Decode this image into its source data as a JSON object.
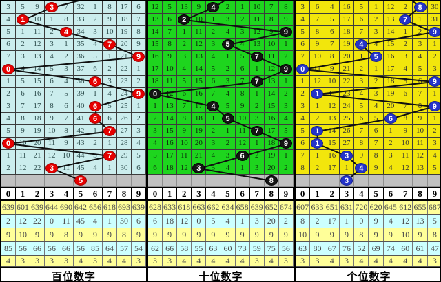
{
  "chart_data": {
    "type": "table",
    "description_visible_text_only": true,
    "column_headers": [
      "0",
      "1",
      "2",
      "3",
      "4",
      "5",
      "6",
      "7",
      "8",
      "9"
    ],
    "stats_row_colors": [
      "#FFFF99",
      "#CCFFFF",
      "#FFFF99",
      "#CCFFFF",
      "#FFFF99"
    ],
    "line_color": "#101010",
    "gray_row_color": "#C0C0C0",
    "panels": [
      {
        "id": "hundreds",
        "title": "百位数字",
        "bg": "#CBEDED",
        "text_color": "#2F4F4F",
        "ball_color": "#E60000",
        "ball_border": "#9d0000",
        "incoming_from_col": 6.3,
        "drawn_sequence": [
          3,
          1,
          4,
          7,
          9,
          0,
          6,
          9,
          6,
          6,
          7,
          0,
          7,
          3
        ],
        "rows": [
          {
            "cells": [
              "3",
              "5",
              "9",
              "3",
              "7",
              "32",
              "1",
              "8",
              "17",
              "6"
            ],
            "ball": 3
          },
          {
            "cells": [
              "4",
              "1",
              "10",
              "1",
              "8",
              "33",
              "2",
              "9",
              "18",
              "7"
            ],
            "ball": 1
          },
          {
            "cells": [
              "5",
              "1",
              "11",
              "2",
              "4",
              "34",
              "3",
              "10",
              "19",
              "8"
            ],
            "ball": 4
          },
          {
            "cells": [
              "6",
              "2",
              "12",
              "3",
              "1",
              "35",
              "4",
              "7",
              "20",
              "9"
            ],
            "ball": 7
          },
          {
            "cells": [
              "7",
              "3",
              "13",
              "4",
              "2",
              "36",
              "5",
              "1",
              "21",
              "9"
            ],
            "ball": 9
          },
          {
            "cells": [
              "0",
              "4",
              "14",
              "5",
              "3",
              "37",
              "6",
              "2",
              "22",
              "1"
            ],
            "ball": 0
          },
          {
            "cells": [
              "1",
              "5",
              "15",
              "6",
              "4",
              "38",
              "6",
              "3",
              "23",
              "2"
            ],
            "ball": 6
          },
          {
            "cells": [
              "2",
              "6",
              "16",
              "7",
              "5",
              "39",
              "1",
              "4",
              "24",
              "9"
            ],
            "ball": 9
          },
          {
            "cells": [
              "3",
              "7",
              "17",
              "8",
              "6",
              "40",
              "6",
              "5",
              "25",
              "1"
            ],
            "ball": 6
          },
          {
            "cells": [
              "4",
              "8",
              "18",
              "9",
              "7",
              "41",
              "6",
              "6",
              "26",
              "2"
            ],
            "ball": 6
          },
          {
            "cells": [
              "5",
              "9",
              "19",
              "10",
              "8",
              "42",
              "1",
              "7",
              "27",
              "3"
            ],
            "ball": 7
          },
          {
            "cells": [
              "0",
              "10",
              "20",
              "11",
              "9",
              "43",
              "2",
              "1",
              "28",
              "4"
            ],
            "ball": 0
          },
          {
            "cells": [
              "1",
              "11",
              "21",
              "12",
              "10",
              "44",
              "3",
              "7",
              "29",
              "5"
            ],
            "ball": 7
          },
          {
            "cells": [
              "2",
              "12",
              "22",
              "3",
              "11",
              "45",
              "4",
              "1",
              "30",
              "6"
            ],
            "ball": 3
          }
        ],
        "gray_ball_col": 5,
        "gray_ball_value": "5",
        "stats": [
          [
            "639",
            "601",
            "639",
            "644",
            "690",
            "642",
            "656",
            "618",
            "693",
            "639"
          ],
          [
            "2",
            "12",
            "22",
            "0",
            "11",
            "45",
            "4",
            "1",
            "30",
            "6"
          ],
          [
            "9",
            "10",
            "9",
            "9",
            "8",
            "9",
            "9",
            "9",
            "8",
            "9"
          ],
          [
            "85",
            "56",
            "66",
            "56",
            "66",
            "56",
            "85",
            "64",
            "57",
            "54"
          ],
          [
            "4",
            "3",
            "3",
            "3",
            "3",
            "4",
            "3",
            "4",
            "4",
            "3"
          ]
        ]
      },
      {
        "id": "tens",
        "title": "十位数字",
        "bg": "#1ED51E",
        "text_color": "#0b2b0b",
        "ball_color": "#141414",
        "ball_border": "#000000",
        "incoming_from_col": 5.3,
        "drawn_sequence": [
          4,
          2,
          9,
          5,
          7,
          9,
          7,
          0,
          4,
          5,
          7,
          9,
          6,
          3
        ],
        "rows": [
          {
            "cells": [
              "12",
              "5",
              "13",
              "9",
              "4",
              "2",
              "1",
              "10",
              "7",
              "8"
            ],
            "ball": 4
          },
          {
            "cells": [
              "13",
              "6",
              "2",
              "10",
              "1",
              "3",
              "2",
              "11",
              "8",
              "9"
            ],
            "ball": 2
          },
          {
            "cells": [
              "14",
              "7",
              "1",
              "11",
              "2",
              "4",
              "3",
              "12",
              "9",
              "9"
            ],
            "ball": 9
          },
          {
            "cells": [
              "15",
              "8",
              "2",
              "12",
              "3",
              "5",
              "4",
              "13",
              "10",
              "1"
            ],
            "ball": 5
          },
          {
            "cells": [
              "16",
              "9",
              "3",
              "13",
              "4",
              "1",
              "5",
              "7",
              "11",
              "2"
            ],
            "ball": 7
          },
          {
            "cells": [
              "17",
              "10",
              "4",
              "14",
              "5",
              "2",
              "6",
              "1",
              "12",
              "9"
            ],
            "ball": 9
          },
          {
            "cells": [
              "18",
              "11",
              "5",
              "15",
              "6",
              "3",
              "7",
              "7",
              "13",
              "1"
            ],
            "ball": 7
          },
          {
            "cells": [
              "0",
              "12",
              "6",
              "16",
              "7",
              "4",
              "8",
              "1",
              "14",
              "2"
            ],
            "ball": 0
          },
          {
            "cells": [
              "1",
              "13",
              "7",
              "17",
              "4",
              "5",
              "9",
              "2",
              "15",
              "3"
            ],
            "ball": 4
          },
          {
            "cells": [
              "2",
              "14",
              "8",
              "18",
              "1",
              "5",
              "10",
              "3",
              "16",
              "4"
            ],
            "ball": 5
          },
          {
            "cells": [
              "3",
              "15",
              "9",
              "19",
              "2",
              "1",
              "11",
              "7",
              "17",
              "5"
            ],
            "ball": 7
          },
          {
            "cells": [
              "4",
              "16",
              "10",
              "20",
              "3",
              "2",
              "12",
              "1",
              "18",
              "9"
            ],
            "ball": 9
          },
          {
            "cells": [
              "5",
              "17",
              "11",
              "21",
              "4",
              "3",
              "6",
              "2",
              "19",
              "1"
            ],
            "ball": 6
          },
          {
            "cells": [
              "6",
              "18",
              "12",
              "3",
              "5",
              "4",
              "1",
              "3",
              "20",
              "2"
            ],
            "ball": 3
          }
        ],
        "gray_ball_col": 8,
        "gray_ball_value": "8",
        "stats": [
          [
            "628",
            "633",
            "618",
            "663",
            "662",
            "634",
            "658",
            "639",
            "652",
            "674"
          ],
          [
            "6",
            "18",
            "12",
            "0",
            "5",
            "4",
            "1",
            "3",
            "20",
            "2"
          ],
          [
            "9",
            "9",
            "9",
            "9",
            "9",
            "9",
            "9",
            "9",
            "9",
            "9"
          ],
          [
            "62",
            "66",
            "58",
            "55",
            "63",
            "60",
            "73",
            "59",
            "75",
            "56"
          ],
          [
            "3",
            "3",
            "4",
            "4",
            "4",
            "4",
            "4",
            "3",
            "4",
            "3"
          ]
        ]
      },
      {
        "id": "units",
        "title": "个位数字",
        "bg": "#F2E60C",
        "text_color": "#333333",
        "ball_color": "#2433C9",
        "ball_border": "#15208f",
        "incoming_from_col": 7.2,
        "drawn_sequence": [
          8,
          7,
          9,
          4,
          5,
          0,
          9,
          1,
          9,
          6,
          1,
          1,
          3,
          4
        ],
        "rows": [
          {
            "cells": [
              "3",
              "6",
              "4",
              "16",
              "5",
              "1",
              "12",
              "2",
              "8",
              "30"
            ],
            "ball": 8
          },
          {
            "cells": [
              "4",
              "7",
              "5",
              "17",
              "6",
              "2",
              "13",
              "7",
              "1",
              "31"
            ],
            "ball": 7
          },
          {
            "cells": [
              "5",
              "8",
              "6",
              "18",
              "7",
              "3",
              "14",
              "1",
              "2",
              "9"
            ],
            "ball": 9
          },
          {
            "cells": [
              "6",
              "9",
              "7",
              "19",
              "4",
              "4",
              "15",
              "2",
              "3",
              "1"
            ],
            "ball": 4
          },
          {
            "cells": [
              "7",
              "10",
              "8",
              "20",
              "1",
              "5",
              "16",
              "3",
              "4",
              "2"
            ],
            "ball": 5
          },
          {
            "cells": [
              "0",
              "11",
              "9",
              "21",
              "2",
              "1",
              "17",
              "4",
              "5",
              "3"
            ],
            "ball": 0
          },
          {
            "cells": [
              "1",
              "12",
              "10",
              "22",
              "3",
              "2",
              "18",
              "5",
              "6",
              "9"
            ],
            "ball": 9
          },
          {
            "cells": [
              "2",
              "1",
              "11",
              "23",
              "4",
              "3",
              "19",
              "6",
              "7",
              "1"
            ],
            "ball": 1
          },
          {
            "cells": [
              "3",
              "1",
              "12",
              "24",
              "5",
              "4",
              "20",
              "7",
              "8",
              "9"
            ],
            "ball": 9
          },
          {
            "cells": [
              "4",
              "2",
              "13",
              "25",
              "6",
              "5",
              "6",
              "8",
              "9",
              "1"
            ],
            "ball": 6
          },
          {
            "cells": [
              "5",
              "1",
              "14",
              "26",
              "7",
              "6",
              "1",
              "9",
              "10",
              "2"
            ],
            "ball": 1
          },
          {
            "cells": [
              "6",
              "1",
              "15",
              "27",
              "8",
              "7",
              "2",
              "10",
              "11",
              "3"
            ],
            "ball": 1
          },
          {
            "cells": [
              "7",
              "1",
              "16",
              "3",
              "9",
              "8",
              "3",
              "11",
              "12",
              "4"
            ],
            "ball": 3
          },
          {
            "cells": [
              "8",
              "2",
              "17",
              "1",
              "4",
              "9",
              "4",
              "12",
              "13",
              "5"
            ],
            "ball": 4
          }
        ],
        "gray_ball_col": 3,
        "gray_ball_value": "3",
        "stats": [
          [
            "607",
            "633",
            "651",
            "631",
            "720",
            "620",
            "645",
            "612",
            "655",
            "687"
          ],
          [
            "8",
            "2",
            "17",
            "1",
            "0",
            "9",
            "4",
            "12",
            "13",
            "5"
          ],
          [
            "10",
            "9",
            "9",
            "9",
            "8",
            "9",
            "9",
            "10",
            "9",
            "8"
          ],
          [
            "63",
            "80",
            "67",
            "76",
            "52",
            "69",
            "74",
            "60",
            "61",
            "47"
          ],
          [
            "3",
            "3",
            "4",
            "3",
            "4",
            "4",
            "4",
            "4",
            "4",
            "3"
          ]
        ]
      }
    ]
  }
}
